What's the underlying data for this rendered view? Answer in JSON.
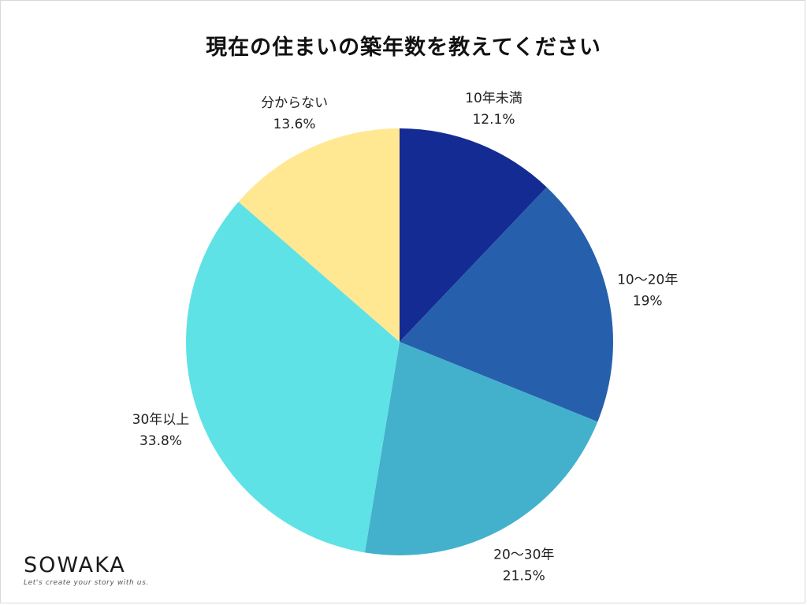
{
  "chart_data": {
    "type": "pie",
    "title": "現在の住まいの築年数を教えてください",
    "unit": "%",
    "slices": [
      {
        "label": "10年未満",
        "value_text": "12.1%",
        "value": 12.1,
        "color": "#152b94"
      },
      {
        "label": "10〜20年",
        "value_text": "19%",
        "value": 19,
        "color": "#2660ac"
      },
      {
        "label": "20〜30年",
        "value_text": "21.5%",
        "value": 21.5,
        "color": "#43b1cc"
      },
      {
        "label": "30年以上",
        "value_text": "33.8%",
        "value": 33.8,
        "color": "#5ee2e6"
      },
      {
        "label": "分からない",
        "value_text": "13.6%",
        "value": 13.6,
        "color": "#ffe891"
      }
    ],
    "start": "12 o'clock",
    "direction": "clockwise",
    "legend": "none"
  },
  "branding": {
    "logo_text": "SOWAKA",
    "tagline": "Let's create your story with us."
  }
}
